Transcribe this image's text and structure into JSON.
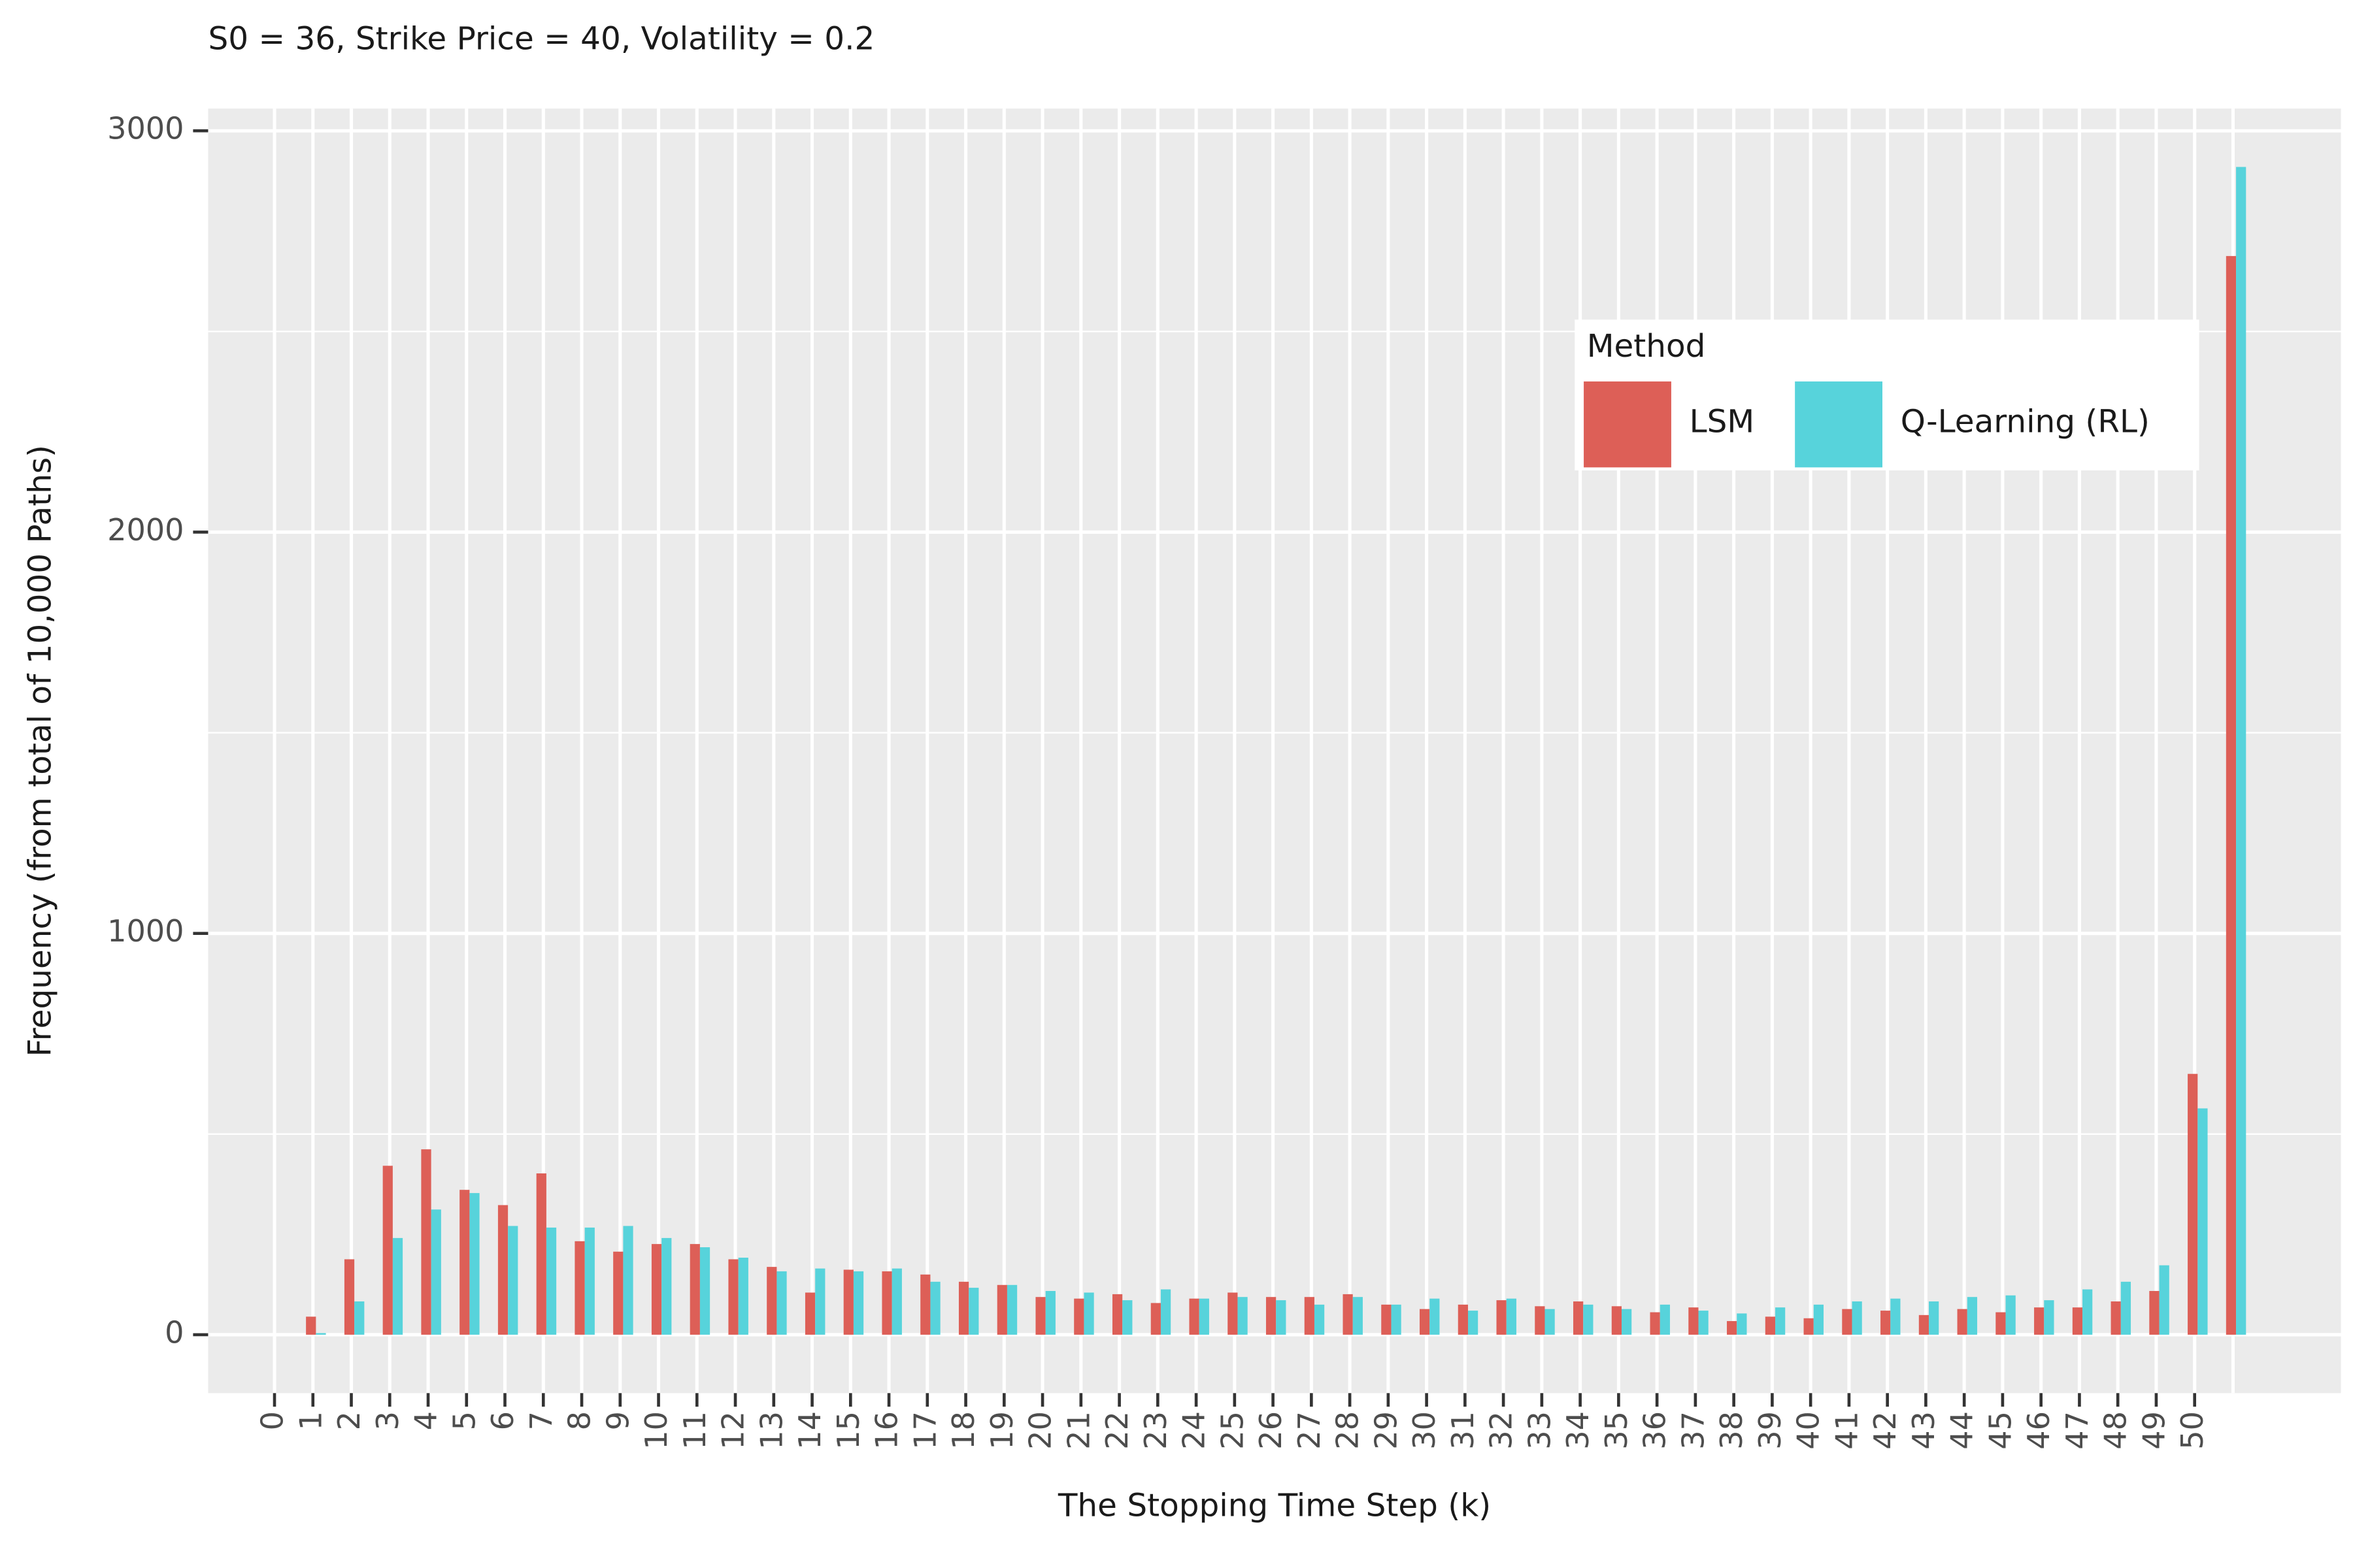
{
  "chart_data": {
    "type": "bar",
    "title": "S0 = 36, Strike Price = 40, Volatility = 0.2",
    "x_label": "The Stopping Time Step (k)",
    "y_label": "Frequency (from total of 10,000 Paths)",
    "categories": [
      "0",
      "1",
      "2",
      "3",
      "4",
      "5",
      "6",
      "7",
      "8",
      "9",
      "10",
      "11",
      "12",
      "13",
      "14",
      "15",
      "16",
      "17",
      "18",
      "19",
      "20",
      "21",
      "22",
      "23",
      "24",
      "25",
      "26",
      "27",
      "28",
      "29",
      "30",
      "31",
      "32",
      "33",
      "34",
      "35",
      "36",
      "37",
      "38",
      "39",
      "40",
      "41",
      "42",
      "43",
      "44",
      "45",
      "46",
      "47",
      "48",
      "49",
      "50",
      null
    ],
    "series": [
      {
        "name": "LSM",
        "color": "#dd5f57",
        "values": [
          0,
          45,
          188,
          421,
          462,
          361,
          323,
          402,
          233,
          207,
          226,
          226,
          188,
          169,
          105,
          162,
          158,
          150,
          132,
          124,
          94,
          90,
          101,
          79,
          90,
          105,
          94,
          94,
          101,
          75,
          64,
          75,
          86,
          71,
          83,
          71,
          56,
          68,
          34,
          45,
          41,
          64,
          60,
          49,
          64,
          56,
          68,
          68,
          83,
          109,
          650,
          2688
        ]
      },
      {
        "name": "Q-Learning (RL)",
        "color": "#57d3db",
        "values": [
          0,
          4,
          83,
          241,
          312,
          353,
          271,
          267,
          267,
          271,
          241,
          218,
          192,
          158,
          165,
          158,
          165,
          132,
          117,
          124,
          109,
          105,
          86,
          113,
          90,
          94,
          86,
          75,
          94,
          75,
          90,
          60,
          90,
          64,
          75,
          64,
          75,
          60,
          53,
          68,
          75,
          83,
          90,
          83,
          94,
          98,
          86,
          113,
          132,
          173,
          564,
          2910
        ]
      }
    ],
    "legend_title": "Method",
    "ylim": [
      -145.5,
      3055.5
    ],
    "yticks": [
      0,
      1000,
      2000,
      3000
    ],
    "yminorticks": [
      500,
      1500,
      2500
    ],
    "grid": true
  }
}
